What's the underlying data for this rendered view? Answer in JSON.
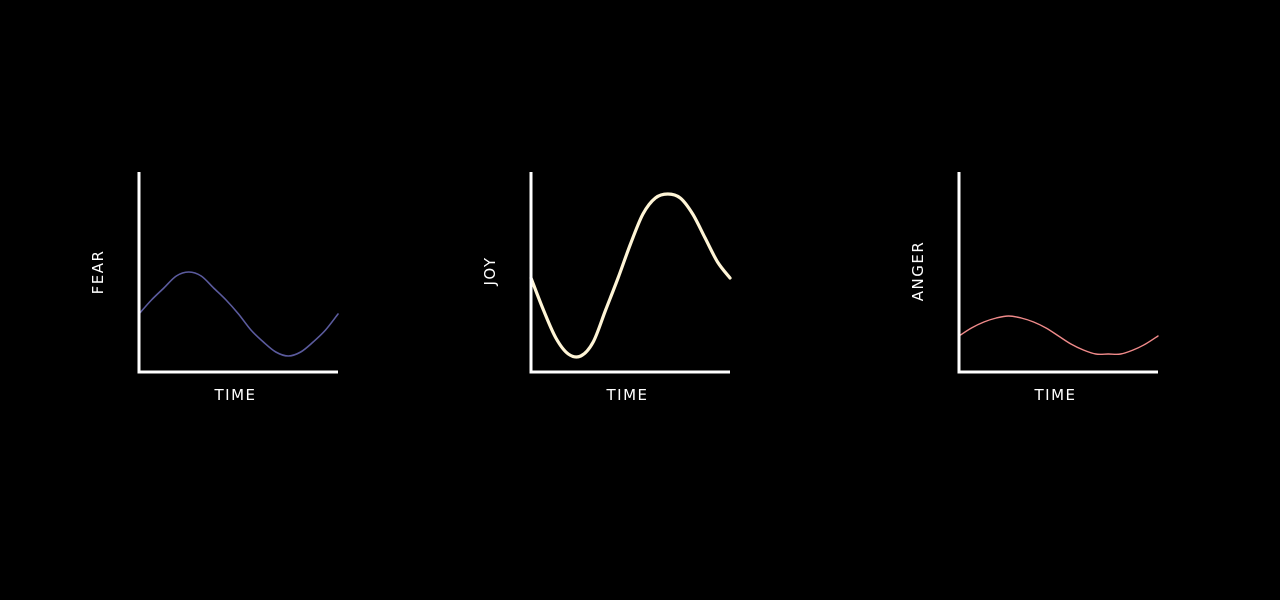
{
  "chart_data": [
    {
      "type": "line",
      "title": "",
      "xlabel": "TIME",
      "ylabel": "FEAR",
      "color": "#5b5b9e",
      "grid": false,
      "legend": "none",
      "xlim": [
        0,
        1
      ],
      "ylim": [
        0,
        1
      ],
      "series": [
        {
          "x": [
            0,
            0.0625,
            0.125,
            0.1875,
            0.25,
            0.3125,
            0.375,
            0.4375,
            0.5,
            0.5625,
            0.625,
            0.6875,
            0.75,
            0.8125,
            0.875,
            0.9375,
            1
          ],
          "y": [
            0.29,
            0.36,
            0.42,
            0.48,
            0.5,
            0.48,
            0.42,
            0.36,
            0.29,
            0.21,
            0.15,
            0.1,
            0.08,
            0.1,
            0.15,
            0.21,
            0.29
          ]
        }
      ]
    },
    {
      "type": "line",
      "title": "",
      "xlabel": "TIME",
      "ylabel": "JOY",
      "color": "#fff5d6",
      "grid": false,
      "legend": "none",
      "xlim": [
        0,
        1
      ],
      "ylim": [
        0,
        1
      ],
      "series": [
        {
          "x": [
            0,
            0.0625,
            0.125,
            0.1875,
            0.25,
            0.3125,
            0.375,
            0.4375,
            0.5,
            0.5625,
            0.625,
            0.6875,
            0.75,
            0.8125,
            0.875,
            0.9375,
            1
          ],
          "y": [
            0.47,
            0.31,
            0.17,
            0.09,
            0.08,
            0.15,
            0.31,
            0.47,
            0.64,
            0.79,
            0.87,
            0.89,
            0.87,
            0.79,
            0.67,
            0.55,
            0.47
          ]
        }
      ]
    },
    {
      "type": "line",
      "title": "",
      "xlabel": "TIME",
      "ylabel": "ANGER",
      "color": "#f08a8a",
      "grid": false,
      "legend": "none",
      "xlim": [
        0,
        1
      ],
      "ylim": [
        0,
        1
      ],
      "series": [
        {
          "x": [
            0,
            0.0625,
            0.125,
            0.1875,
            0.25,
            0.3125,
            0.375,
            0.4375,
            0.5,
            0.5625,
            0.625,
            0.6875,
            0.75,
            0.8125,
            0.875,
            0.9375,
            1
          ],
          "y": [
            0.18,
            0.22,
            0.25,
            0.27,
            0.28,
            0.27,
            0.25,
            0.22,
            0.18,
            0.14,
            0.11,
            0.09,
            0.09,
            0.09,
            0.11,
            0.14,
            0.18
          ]
        }
      ]
    }
  ]
}
